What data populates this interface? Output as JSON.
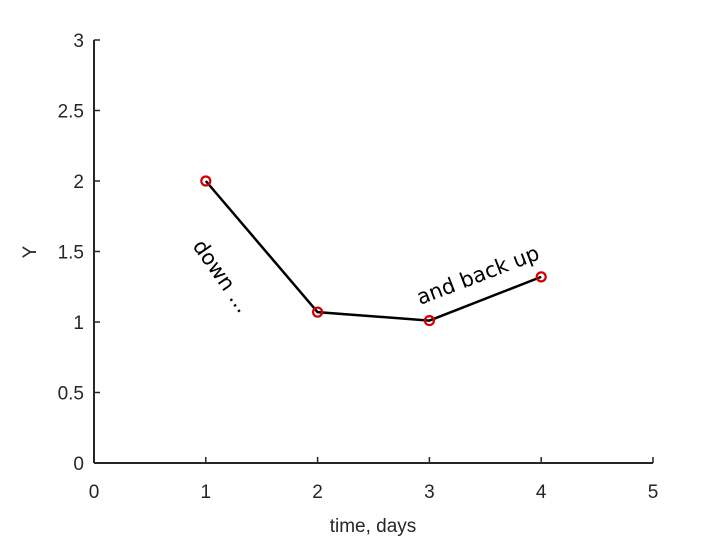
{
  "chart_data": {
    "type": "line",
    "x": [
      1,
      2,
      3,
      4
    ],
    "series": [
      {
        "name": "Y",
        "color": "#000000",
        "marker_color": "#d00000",
        "values": [
          2,
          1.07,
          1.01,
          1.32
        ]
      }
    ],
    "xlabel": "time, days",
    "ylabel": "Y",
    "xlim": [
      0,
      5
    ],
    "xticks": [
      0,
      1,
      2,
      3,
      4,
      5
    ],
    "ylim": [
      0,
      3
    ],
    "yticks": [
      0,
      0.5,
      1,
      1.5,
      2,
      2.5,
      3
    ],
    "annotations": [
      "down ...",
      "and back up"
    ]
  }
}
